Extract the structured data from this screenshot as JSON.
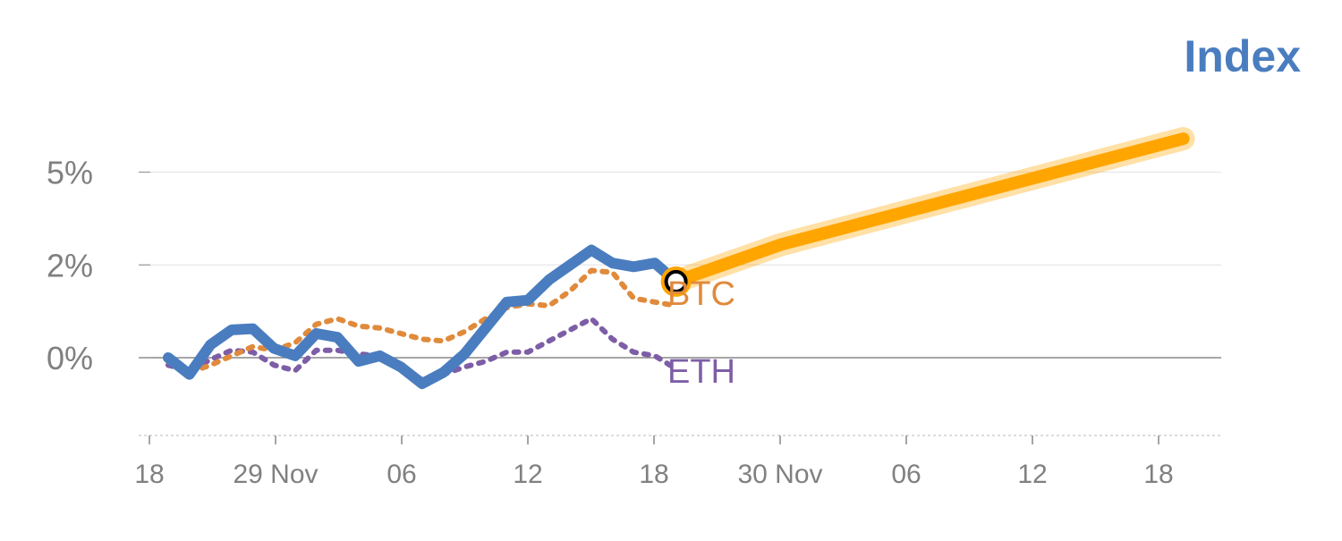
{
  "chart_data": {
    "type": "line",
    "title": "Index",
    "xlabel": "",
    "ylabel": "",
    "x_tick_labels": [
      "18",
      "29 Nov",
      "06",
      "12",
      "18",
      "30 Nov",
      "06",
      "12",
      "18"
    ],
    "y_tick_labels": [
      "0%",
      "2%",
      "5%"
    ],
    "grid": true,
    "colors": {
      "index": "#4a7dbf",
      "btc": "#e08a3c",
      "eth": "#7d5ea6",
      "forecast": "#ffa500",
      "title": "#4a7dbf",
      "tick": "#808080"
    },
    "series": [
      {
        "key": "index",
        "name": "",
        "style": "solid",
        "values": [
          0.0,
          -0.45,
          0.35,
          0.75,
          0.78,
          0.25,
          0.05,
          0.65,
          0.55,
          -0.1,
          0.05,
          -0.25,
          -0.7,
          -0.4,
          0.1,
          0.8,
          1.5,
          1.55,
          2.1,
          2.5,
          2.9,
          2.55,
          2.45,
          2.55,
          2.05
        ]
      },
      {
        "key": "btc",
        "name": "BTC",
        "style": "dotted",
        "values": [
          -0.1,
          -0.4,
          -0.2,
          0.05,
          0.3,
          0.2,
          0.4,
          0.9,
          1.05,
          0.85,
          0.8,
          0.65,
          0.5,
          0.45,
          0.7,
          1.05,
          1.35,
          1.45,
          1.4,
          1.8,
          2.35,
          2.3,
          1.6,
          1.5,
          1.4
        ]
      },
      {
        "key": "eth",
        "name": "ETH",
        "style": "dotted",
        "values": [
          -0.2,
          -0.35,
          -0.05,
          0.2,
          0.15,
          -0.2,
          -0.35,
          0.2,
          0.2,
          0.1,
          0.05,
          -0.2,
          -0.6,
          -0.45,
          -0.25,
          -0.1,
          0.15,
          0.15,
          0.45,
          0.75,
          1.05,
          0.5,
          0.15,
          0.05,
          -0.3
        ]
      },
      {
        "key": "forecast",
        "name": "",
        "style": "thick",
        "values": [
          2.05,
          3.05,
          3.2,
          5.9
        ]
      }
    ],
    "forecast_x": [
      0,
      5,
      6,
      24
    ],
    "end_labels": [
      "BTC",
      "ETH"
    ]
  }
}
